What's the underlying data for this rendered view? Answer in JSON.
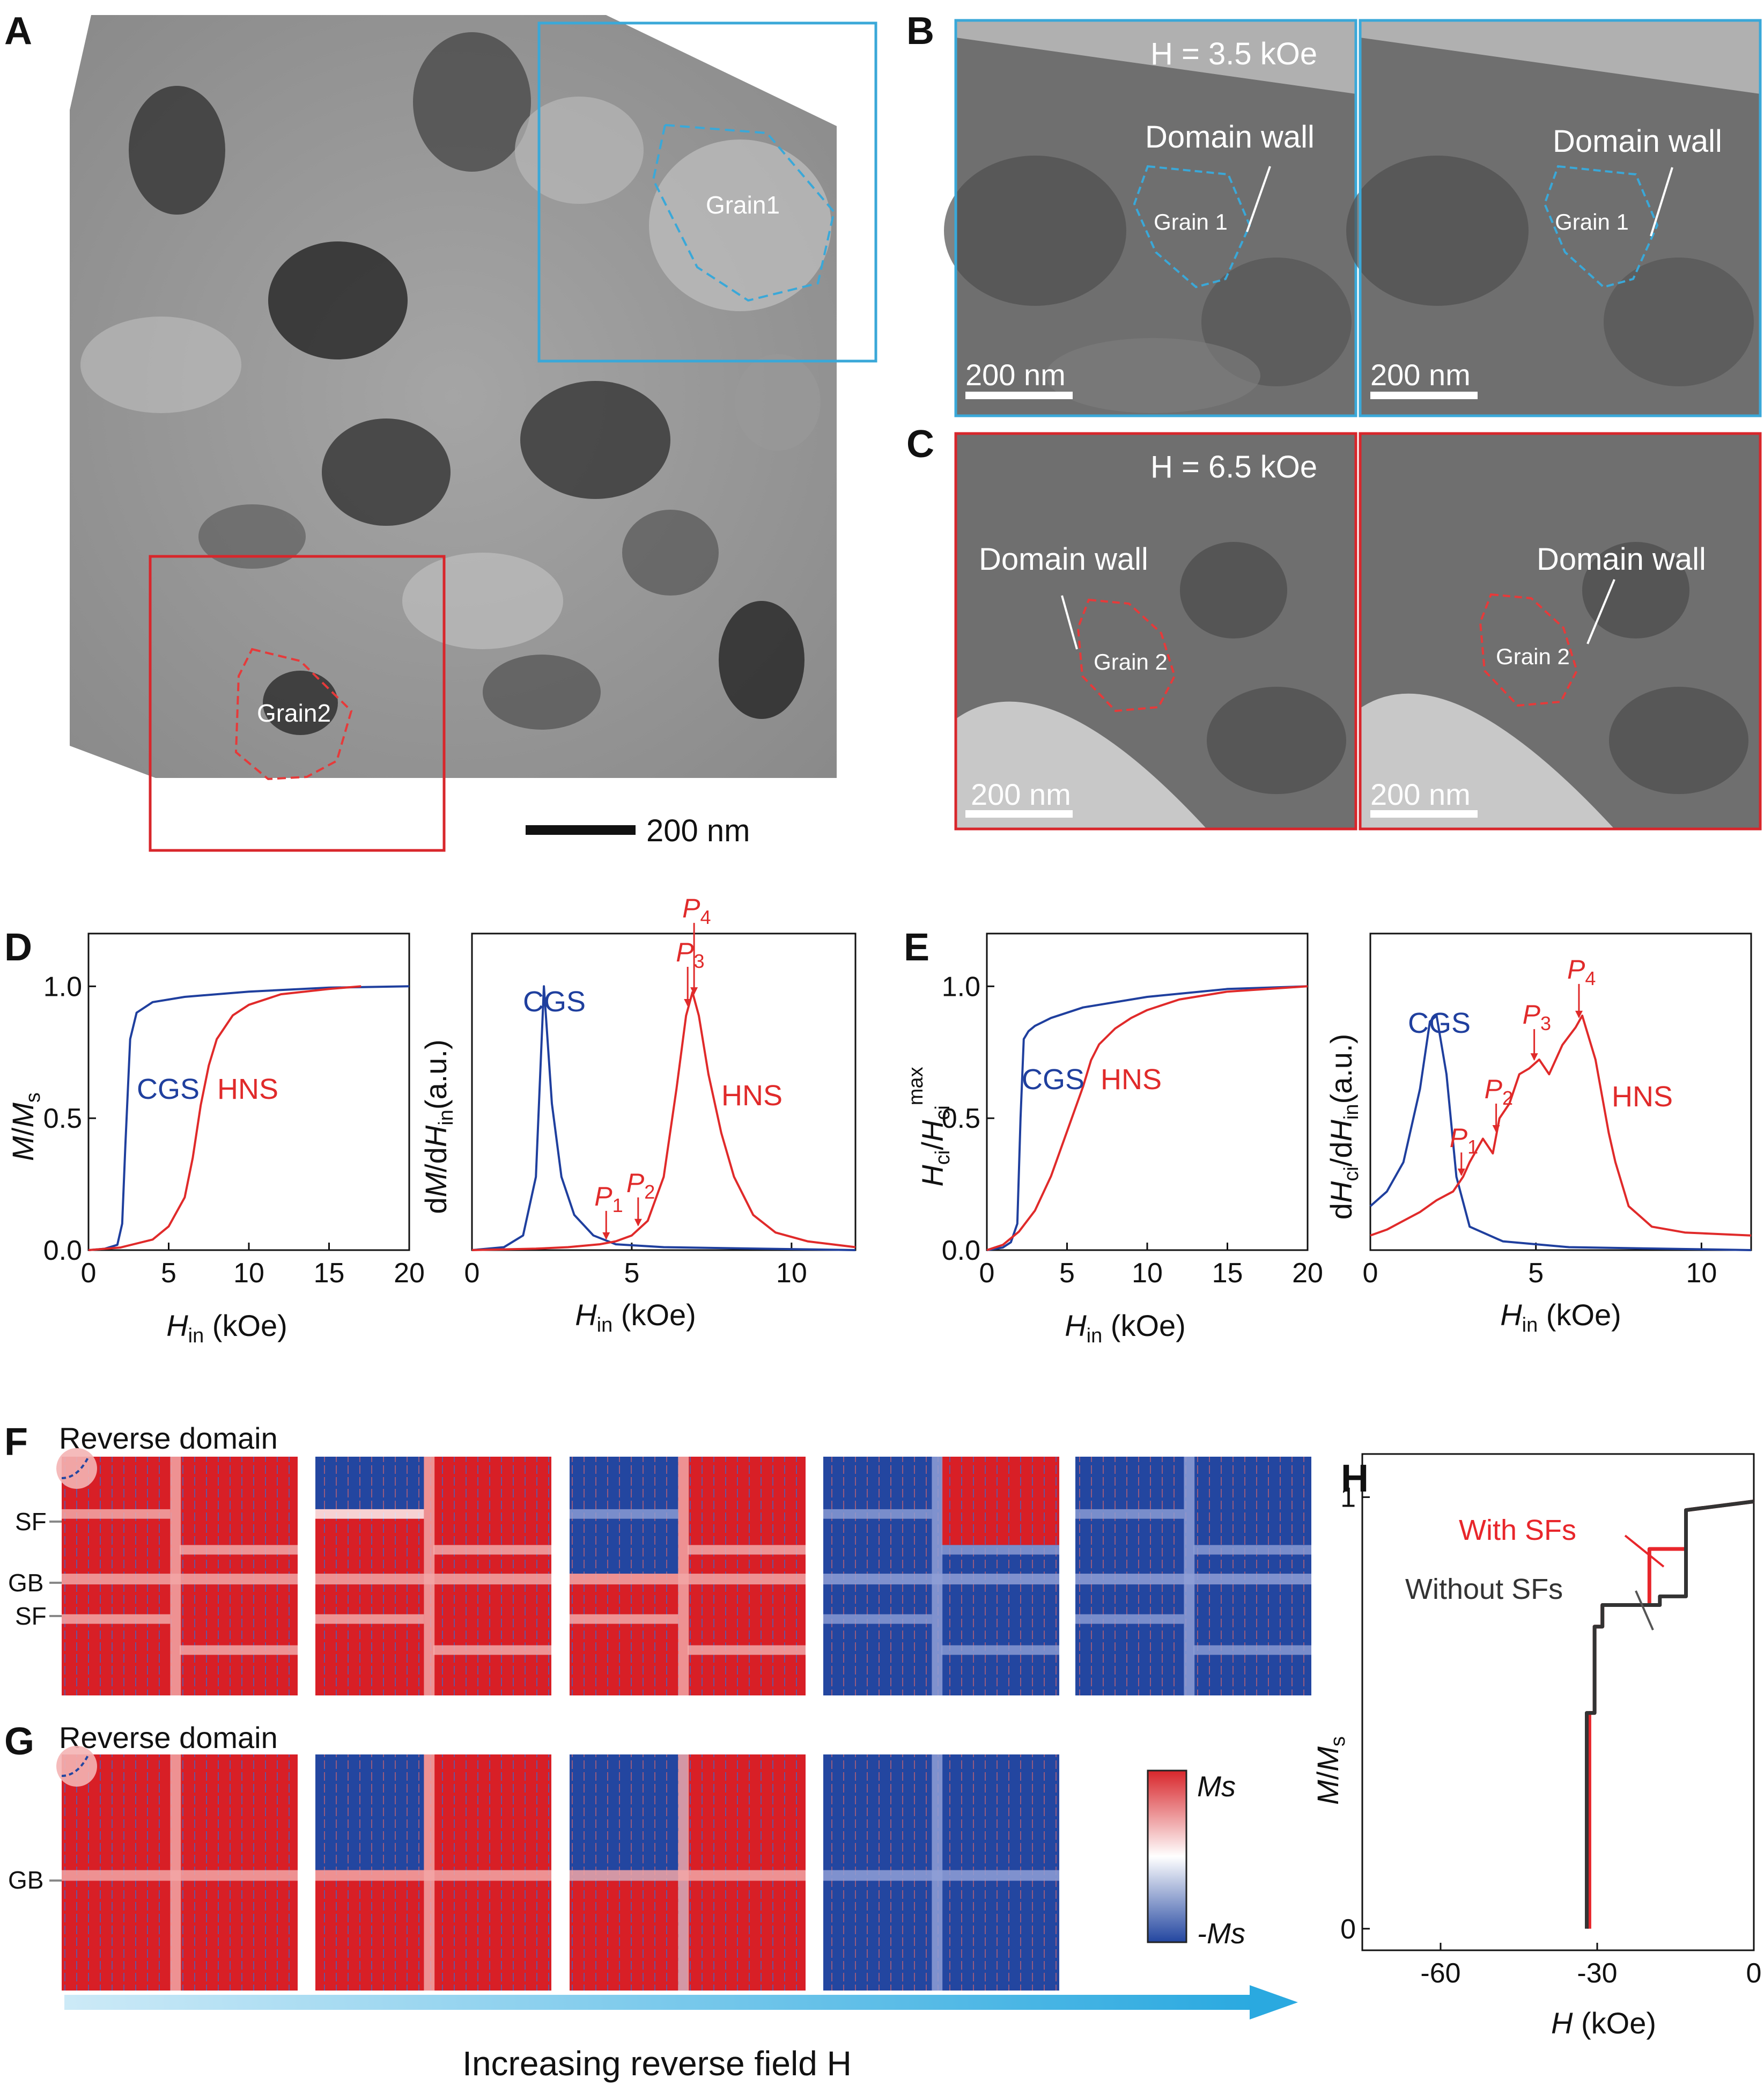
{
  "panels": {
    "A": {
      "label": "A",
      "grain1": "Grain1",
      "grain2": "Grain2",
      "scalebar": "200 nm"
    },
    "B": {
      "label": "B",
      "field": "H = 3.5 kOe",
      "domain_wall": "Domain wall",
      "grain": "Grain 1",
      "scalebar": "200 nm"
    },
    "C": {
      "label": "C",
      "field": "H = 6.5 kOe",
      "domain_wall": "Domain wall",
      "grain": "Grain 2",
      "scalebar": "200 nm"
    },
    "D": {
      "label": "D"
    },
    "E": {
      "label": "E"
    },
    "F": {
      "label": "F",
      "reverse_domain": "Reverse domain",
      "sf": "SF",
      "gb": "GB"
    },
    "G": {
      "label": "G",
      "reverse_domain": "Reverse domain",
      "gb": "GB"
    },
    "H": {
      "label": "H"
    }
  },
  "colorbar": {
    "top": "Ms",
    "bottom": "-Ms"
  },
  "arrow_text": "Increasing reverse field H",
  "colors": {
    "cgs": "#1f3f9e",
    "hns": "#e02a2a",
    "box_blue": "#3aa8d8",
    "box_red": "#d8262b",
    "with_sf": "#e8262b",
    "without_sf": "#333333",
    "domain_red": "#d81f26",
    "domain_blue": "#2346a0"
  },
  "chart_data": [
    {
      "id": "D-left",
      "type": "line",
      "xlabel": "H_in (kOe)",
      "ylabel": "M/M_s",
      "xlim": [
        0,
        20
      ],
      "ylim": [
        0,
        1.2
      ],
      "xticks": [
        "0",
        "5",
        "10",
        "15",
        "20"
      ],
      "yticks": [
        "0.0",
        "0.5",
        "1.0"
      ],
      "series": [
        {
          "name": "CGS",
          "x": [
            0,
            1,
            1.8,
            2.1,
            2.3,
            2.6,
            3,
            4,
            6,
            10,
            15,
            20
          ],
          "y": [
            0,
            0.005,
            0.02,
            0.1,
            0.4,
            0.8,
            0.9,
            0.94,
            0.96,
            0.98,
            0.995,
            1.0
          ]
        },
        {
          "name": "HNS",
          "x": [
            0,
            2,
            4,
            5,
            6,
            6.5,
            7,
            7.5,
            8,
            9,
            10,
            12,
            15,
            17
          ],
          "y": [
            0,
            0.01,
            0.04,
            0.09,
            0.2,
            0.35,
            0.55,
            0.7,
            0.8,
            0.89,
            0.93,
            0.97,
            0.99,
            1.0
          ]
        }
      ],
      "labels": {
        "cgs": "CGS",
        "hns": "HNS"
      }
    },
    {
      "id": "D-right",
      "type": "line",
      "xlabel": "H_in (kOe)",
      "ylabel": "dM/dH_in (a.u.)",
      "xlim": [
        0,
        12
      ],
      "ylim": [
        0,
        1.08
      ],
      "xticks": [
        "0",
        "5",
        "10"
      ],
      "series": [
        {
          "name": "CGS",
          "x": [
            0,
            1,
            1.6,
            2,
            2.25,
            2.5,
            2.8,
            3.2,
            3.8,
            4.5,
            6,
            12
          ],
          "y": [
            0,
            0.01,
            0.05,
            0.25,
            0.9,
            0.5,
            0.25,
            0.12,
            0.05,
            0.02,
            0.01,
            0
          ]
        },
        {
          "name": "HNS",
          "x": [
            0,
            2,
            3,
            4,
            4.5,
            5,
            5.5,
            6,
            6.4,
            6.7,
            6.9,
            7.1,
            7.4,
            7.8,
            8.2,
            8.8,
            9.5,
            10.5,
            12
          ],
          "y": [
            0,
            0.005,
            0.01,
            0.02,
            0.03,
            0.05,
            0.1,
            0.25,
            0.55,
            0.8,
            0.88,
            0.8,
            0.6,
            0.4,
            0.25,
            0.12,
            0.06,
            0.03,
            0.01
          ]
        }
      ],
      "labels": {
        "cgs": "CGS",
        "hns": "HNS"
      },
      "peaks": [
        {
          "name": "P1",
          "x": 4.2
        },
        {
          "name": "P2",
          "x": 5.2
        },
        {
          "name": "P3",
          "x": 6.75
        },
        {
          "name": "P4",
          "x": 6.95
        }
      ]
    },
    {
      "id": "E-left",
      "type": "line",
      "xlabel": "H_in (kOe)",
      "ylabel": "H_ci/H_ci^max",
      "xlim": [
        0,
        20
      ],
      "ylim": [
        0,
        1.2
      ],
      "xticks": [
        "0",
        "5",
        "10",
        "15",
        "20"
      ],
      "yticks": [
        "0.0",
        "0.5",
        "1.0"
      ],
      "series": [
        {
          "name": "CGS",
          "x": [
            0,
            1,
            1.5,
            1.9,
            2.1,
            2.3,
            2.6,
            3,
            4,
            6,
            10,
            15,
            20
          ],
          "y": [
            0,
            0.01,
            0.03,
            0.1,
            0.5,
            0.8,
            0.83,
            0.85,
            0.88,
            0.92,
            0.96,
            0.99,
            1.0
          ]
        },
        {
          "name": "HNS",
          "x": [
            0,
            1,
            2,
            3,
            4,
            5,
            6,
            6.5,
            7,
            8,
            9,
            10,
            12,
            15,
            20
          ],
          "y": [
            0,
            0.02,
            0.07,
            0.15,
            0.28,
            0.45,
            0.62,
            0.72,
            0.78,
            0.84,
            0.88,
            0.91,
            0.95,
            0.98,
            1.0
          ]
        }
      ],
      "labels": {
        "cgs": "CGS",
        "hns": "HNS"
      }
    },
    {
      "id": "E-right",
      "type": "line",
      "xlabel": "H_in (kOe)",
      "ylabel": "dH_ci/dH_in (a.u.)",
      "xlim": [
        0,
        11.5
      ],
      "ylim": [
        0,
        1.08
      ],
      "xticks": [
        "0",
        "5",
        "10"
      ],
      "series": [
        {
          "name": "CGS",
          "x": [
            0,
            0.5,
            1,
            1.5,
            1.8,
            2,
            2.3,
            2.6,
            3,
            4,
            6,
            11.5
          ],
          "y": [
            0.15,
            0.2,
            0.3,
            0.55,
            0.78,
            0.8,
            0.6,
            0.25,
            0.08,
            0.03,
            0.01,
            0
          ]
        },
        {
          "name": "HNS",
          "x": [
            0,
            0.5,
            1,
            1.5,
            2,
            2.5,
            2.8,
            3,
            3.4,
            3.7,
            3.9,
            4.2,
            4.5,
            4.8,
            5.1,
            5.4,
            5.8,
            6.2,
            6.4,
            6.8,
            7.2,
            7.4,
            7.8,
            8.1,
            8.5,
            9.5,
            11.5
          ],
          "y": [
            0.05,
            0.07,
            0.1,
            0.13,
            0.17,
            0.2,
            0.25,
            0.3,
            0.38,
            0.33,
            0.45,
            0.5,
            0.6,
            0.62,
            0.65,
            0.6,
            0.7,
            0.76,
            0.8,
            0.65,
            0.4,
            0.3,
            0.15,
            0.12,
            0.08,
            0.06,
            0.05
          ]
        }
      ],
      "labels": {
        "cgs": "CGS",
        "hns": "HNS"
      },
      "peaks": [
        {
          "name": "P1",
          "x": 2.75
        },
        {
          "name": "P2",
          "x": 3.8
        },
        {
          "name": "P3",
          "x": 4.95
        },
        {
          "name": "P4",
          "x": 6.3
        }
      ]
    },
    {
      "id": "H",
      "type": "line",
      "xlabel": "H (kOe)",
      "ylabel": "M/M_s",
      "xlim": [
        -75,
        0
      ],
      "ylim": [
        -0.05,
        1.1
      ],
      "xticks": [
        "-60",
        "-30",
        "0"
      ],
      "yticks": [
        "0",
        "1"
      ],
      "series": [
        {
          "name": "With SFs",
          "x": [
            -31.5,
            -31.5,
            -30.5,
            -30.5,
            -29,
            -29,
            -20,
            -20,
            -13,
            -13,
            0
          ],
          "y": [
            0,
            0.5,
            0.5,
            0.7,
            0.7,
            0.75,
            0.75,
            0.88,
            0.88,
            0.97,
            0.99
          ]
        },
        {
          "name": "Without SFs",
          "x": [
            -32,
            -32,
            -30.5,
            -30.5,
            -29,
            -29,
            -18,
            -18,
            -13,
            -13,
            0
          ],
          "y": [
            0,
            0.5,
            0.5,
            0.7,
            0.7,
            0.75,
            0.75,
            0.77,
            0.77,
            0.97,
            0.99
          ]
        }
      ]
    }
  ]
}
